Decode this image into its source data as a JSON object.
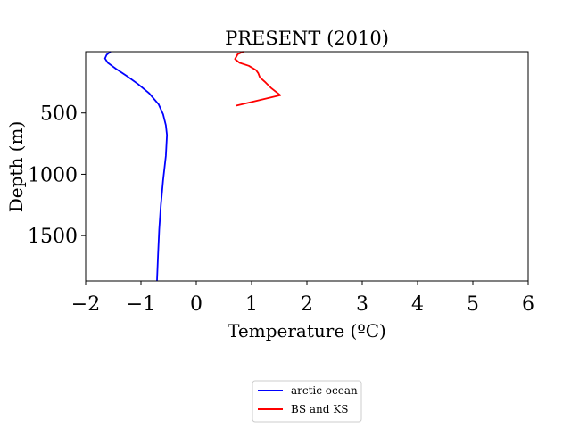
{
  "chart_data": {
    "type": "line",
    "title": "PRESENT (2010)",
    "xlabel": "Temperature (ºC)",
    "ylabel": "Depth (m)",
    "xlim": [
      -2,
      6
    ],
    "ylim": [
      1870,
      0
    ],
    "y_inverted": true,
    "x_ticks": [
      -2,
      -1,
      0,
      1,
      2,
      3,
      4,
      5,
      6
    ],
    "x_tick_labels": [
      "−2",
      "−1",
      "0",
      "1",
      "2",
      "3",
      "4",
      "5",
      "6"
    ],
    "y_ticks": [
      500,
      1000,
      1500
    ],
    "y_tick_labels": [
      "500",
      "1000",
      "1500"
    ],
    "grid": false,
    "legend_position": "bottom-center-below",
    "series": [
      {
        "name": "arctic ocean",
        "color": "#0000ff",
        "points": [
          [
            -1.55,
            0
          ],
          [
            -1.62,
            25
          ],
          [
            -1.65,
            55
          ],
          [
            -1.6,
            90
          ],
          [
            -1.45,
            140
          ],
          [
            -1.25,
            200
          ],
          [
            -1.05,
            265
          ],
          [
            -0.85,
            340
          ],
          [
            -0.68,
            430
          ],
          [
            -0.6,
            510
          ],
          [
            -0.55,
            600
          ],
          [
            -0.53,
            680
          ],
          [
            -0.55,
            850
          ],
          [
            -0.6,
            1050
          ],
          [
            -0.64,
            1250
          ],
          [
            -0.67,
            1450
          ],
          [
            -0.69,
            1650
          ],
          [
            -0.71,
            1870
          ]
        ]
      },
      {
        "name": "BS and KS",
        "color": "#ff0000",
        "points": [
          [
            0.85,
            0
          ],
          [
            0.75,
            20
          ],
          [
            0.7,
            60
          ],
          [
            0.78,
            90
          ],
          [
            0.95,
            115
          ],
          [
            1.08,
            150
          ],
          [
            1.12,
            175
          ],
          [
            1.15,
            210
          ],
          [
            1.25,
            250
          ],
          [
            1.35,
            295
          ],
          [
            1.52,
            355
          ],
          [
            0.72,
            440
          ]
        ]
      }
    ]
  }
}
